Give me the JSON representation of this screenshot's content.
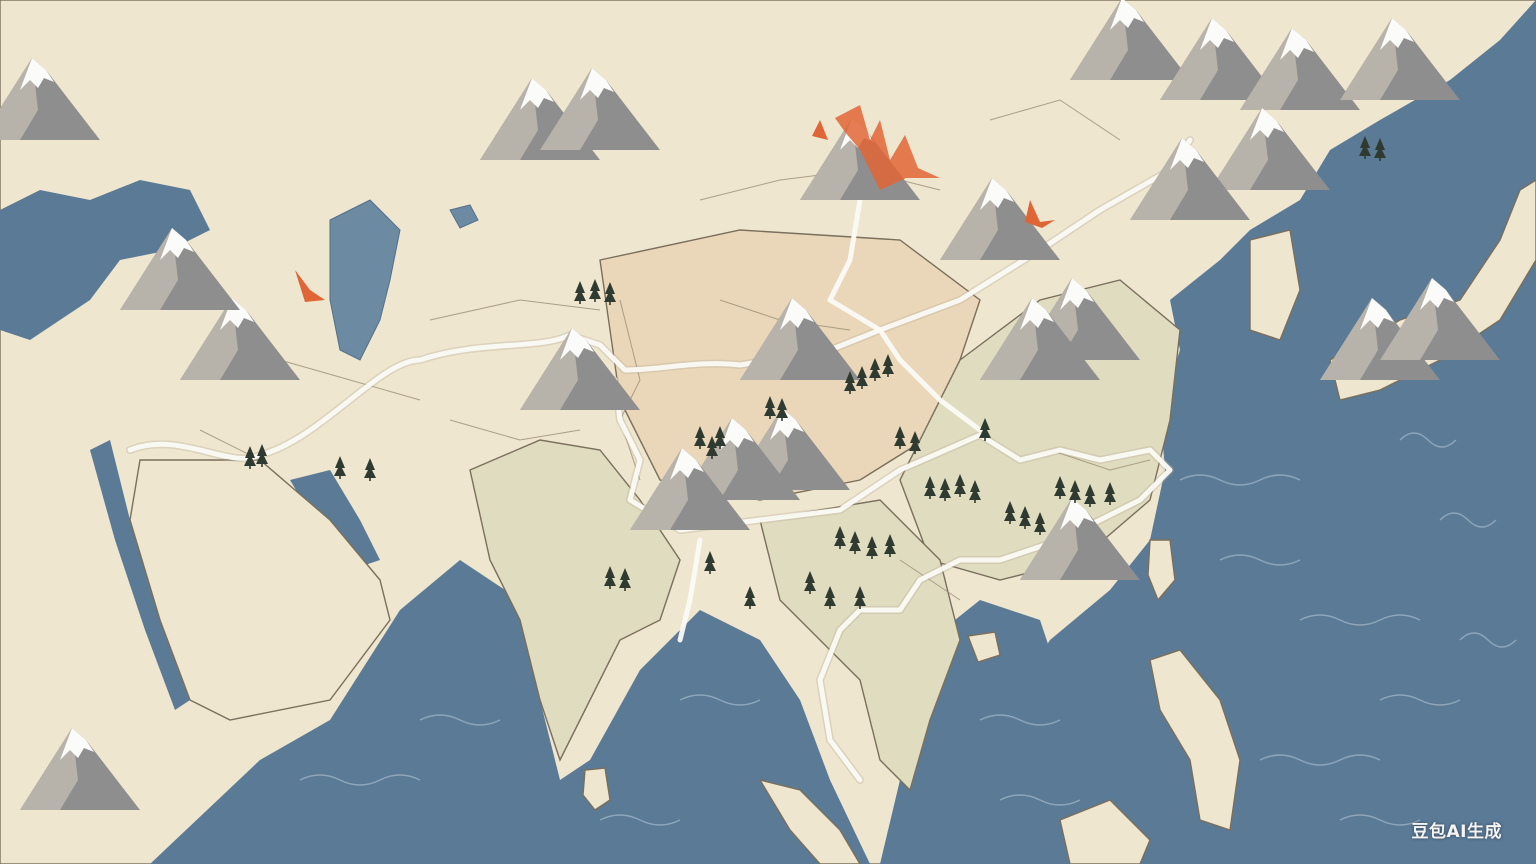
{
  "map": {
    "style": "ink-wash illustrated map of Asia",
    "watermark": "豆包AI生成",
    "markers": [
      {
        "kind": "label",
        "text": ""
      },
      {
        "kind": "label",
        "text": ""
      },
      {
        "kind": "label",
        "text": ""
      }
    ],
    "colors": {
      "sea": "#5a7a96",
      "land": "#efe6cf",
      "route": "#fbfaf4",
      "volcano": "#e06536",
      "snow": "#fbfbfa"
    },
    "icons": [
      "mountain-icon",
      "volcano-icon",
      "pine-tree-icon"
    ]
  }
}
